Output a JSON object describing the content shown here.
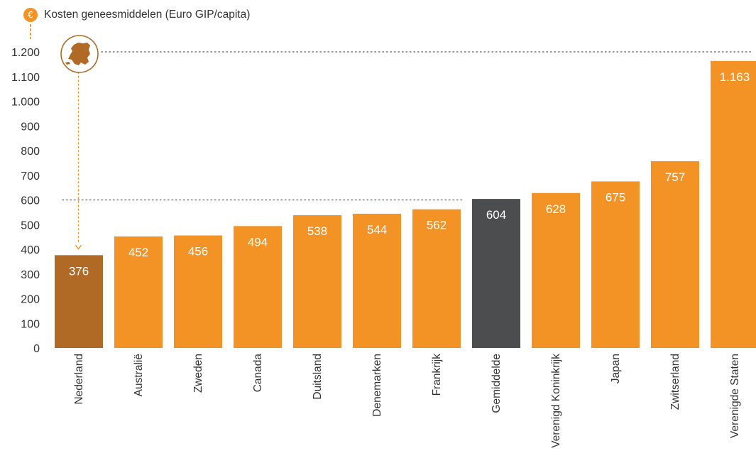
{
  "header": {
    "icon": "euro-icon",
    "title": "Kosten geneesmiddelen (Euro GIP/capita)"
  },
  "colors": {
    "accent": "#f39325",
    "highlight": "#b06a26",
    "average": "#4b4d4e",
    "text": "#333333"
  },
  "map_icon": "netherlands-map-icon",
  "chart_data": {
    "type": "bar",
    "title": "Kosten geneesmiddelen (Euro GIP/capita)",
    "xlabel": "",
    "ylabel": "",
    "categories": [
      "Nederland",
      "Australië",
      "Zweden",
      "Canada",
      "Duitsland",
      "Denemarken",
      "Frankrijk",
      "Gemiddelde",
      "Verenigd Koninkrijk",
      "Japan",
      "Zwitserland",
      "Verenigde Staten"
    ],
    "values": [
      376,
      452,
      456,
      494,
      538,
      544,
      562,
      604,
      628,
      675,
      757,
      1163
    ],
    "value_labels": [
      "376",
      "452",
      "456",
      "494",
      "538",
      "544",
      "562",
      "604",
      "628",
      "675",
      "757",
      "1.163"
    ],
    "ylim": [
      0,
      1200
    ],
    "yticks": [
      0,
      100,
      200,
      300,
      400,
      500,
      600,
      700,
      800,
      900,
      1000,
      1100,
      1200
    ],
    "ytick_labels": [
      "0",
      "100",
      "200",
      "300",
      "400",
      "500",
      "600",
      "700",
      "800",
      "900",
      "1.000",
      "1.100",
      "1.200"
    ],
    "bar_colors": [
      "highlight",
      "accent",
      "accent",
      "accent",
      "accent",
      "accent",
      "accent",
      "average",
      "accent",
      "accent",
      "accent",
      "accent"
    ],
    "reference_lines": [
      1200,
      600
    ],
    "grid": false,
    "legend": "none"
  }
}
